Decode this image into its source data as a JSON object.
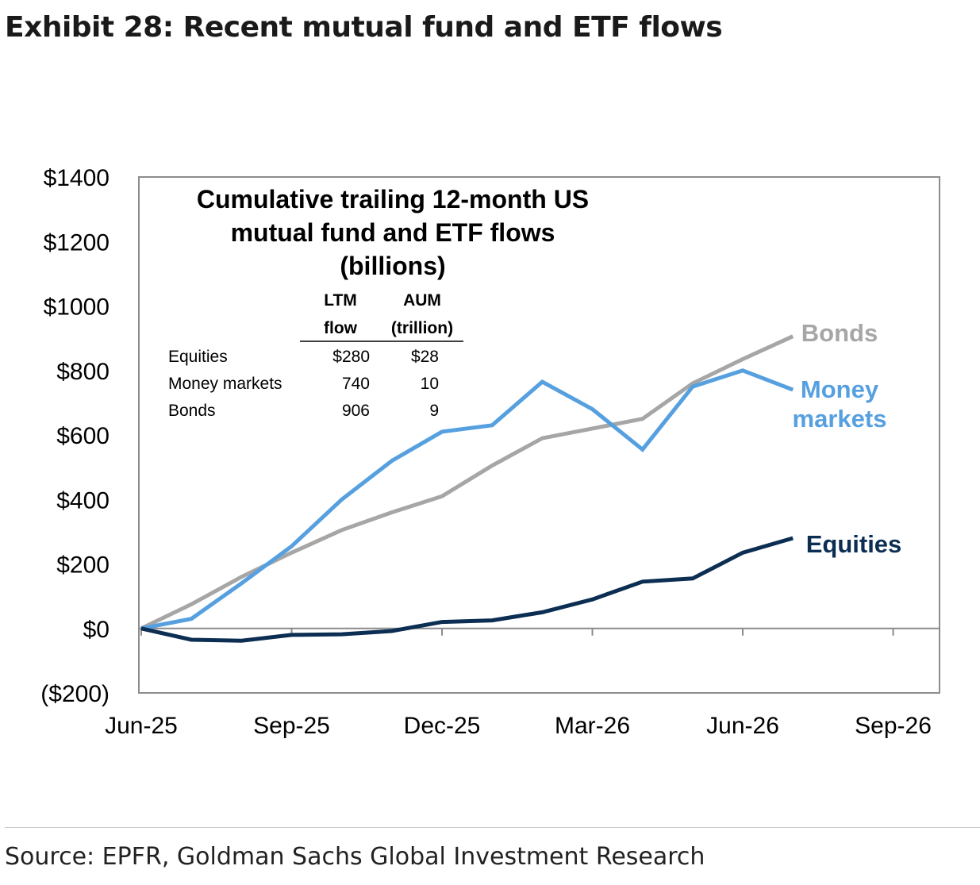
{
  "page": {
    "title": "Exhibit 28: Recent mutual fund and ETF flows",
    "source": "Source: EPFR, Goldman Sachs Global Investment Research"
  },
  "chart_data": {
    "type": "line",
    "title_lines": [
      "Cumulative trailing 12-month US",
      "mutual fund and ETF flows",
      "(billions)"
    ],
    "xlabel": "",
    "ylabel": "",
    "x_ticks": [
      "Jun-25",
      "Sep-25",
      "Dec-25",
      "Mar-26",
      "Jun-26",
      "Sep-26"
    ],
    "y_ticks": [
      "$1400",
      "$1200",
      "$1000",
      "$800",
      "$600",
      "$400",
      "$200",
      "$0",
      "($200)"
    ],
    "ylim": [
      -200,
      1400
    ],
    "xlim": [
      "2025-06",
      "2026-09"
    ],
    "x": [
      "2025-06",
      "2025-07",
      "2025-08",
      "2025-09",
      "2025-10",
      "2025-11",
      "2025-12",
      "2026-01",
      "2026-02",
      "2026-03",
      "2026-04",
      "2026-05",
      "2026-06",
      "2026-07"
    ],
    "grid": false,
    "series": [
      {
        "name": "Bonds",
        "color": "#a6a6a6",
        "label_lines": [
          "Bonds"
        ],
        "values": [
          0,
          75,
          160,
          235,
          305,
          360,
          410,
          505,
          590,
          620,
          650,
          760,
          835,
          906
        ]
      },
      {
        "name": "Money markets",
        "color": "#56a0e0",
        "label_lines": [
          "Money",
          "markets"
        ],
        "values": [
          0,
          30,
          140,
          255,
          400,
          520,
          610,
          630,
          765,
          680,
          555,
          750,
          800,
          740
        ]
      },
      {
        "name": "Equities",
        "color": "#0b2e52",
        "label_lines": [
          "Equities"
        ],
        "values": [
          0,
          -35,
          -38,
          -20,
          -18,
          -8,
          20,
          25,
          50,
          90,
          145,
          155,
          235,
          280
        ]
      }
    ],
    "inset_table": {
      "headers": [
        [
          "LTM",
          "flow"
        ],
        [
          "AUM",
          "(trillion)"
        ]
      ],
      "rows": [
        {
          "label": "Equities",
          "ltm_flow": "$280",
          "aum": "$28"
        },
        {
          "label": "Money markets",
          "ltm_flow": "740",
          "aum": "10"
        },
        {
          "label": "Bonds",
          "ltm_flow": "906",
          "aum": "9"
        }
      ]
    }
  }
}
